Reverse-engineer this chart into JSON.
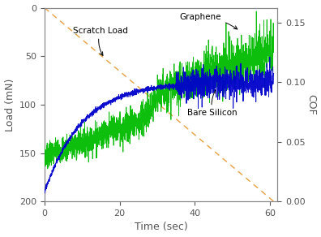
{
  "title": "",
  "xlabel": "Time (sec)",
  "ylabel_left": "Load (mN)",
  "ylabel_right": "COF",
  "xlim": [
    0,
    62
  ],
  "ylim_left": [
    200,
    0
  ],
  "ylim_right": [
    0.0,
    0.1625
  ],
  "xticks": [
    0,
    20,
    40,
    60
  ],
  "yticks_left": [
    0,
    50,
    100,
    150,
    200
  ],
  "yticks_right": [
    0.0,
    0.05,
    0.1,
    0.15
  ],
  "scratch_load_color": "#E8A040",
  "graphene_color": "#00BB00",
  "bare_silicon_color": "#0000CC",
  "bg_color": "#FFFFFF",
  "spine_color": "#888888",
  "tick_color": "#555555",
  "font_size_label": 9,
  "font_size_tick": 8,
  "font_size_annot": 7.5
}
